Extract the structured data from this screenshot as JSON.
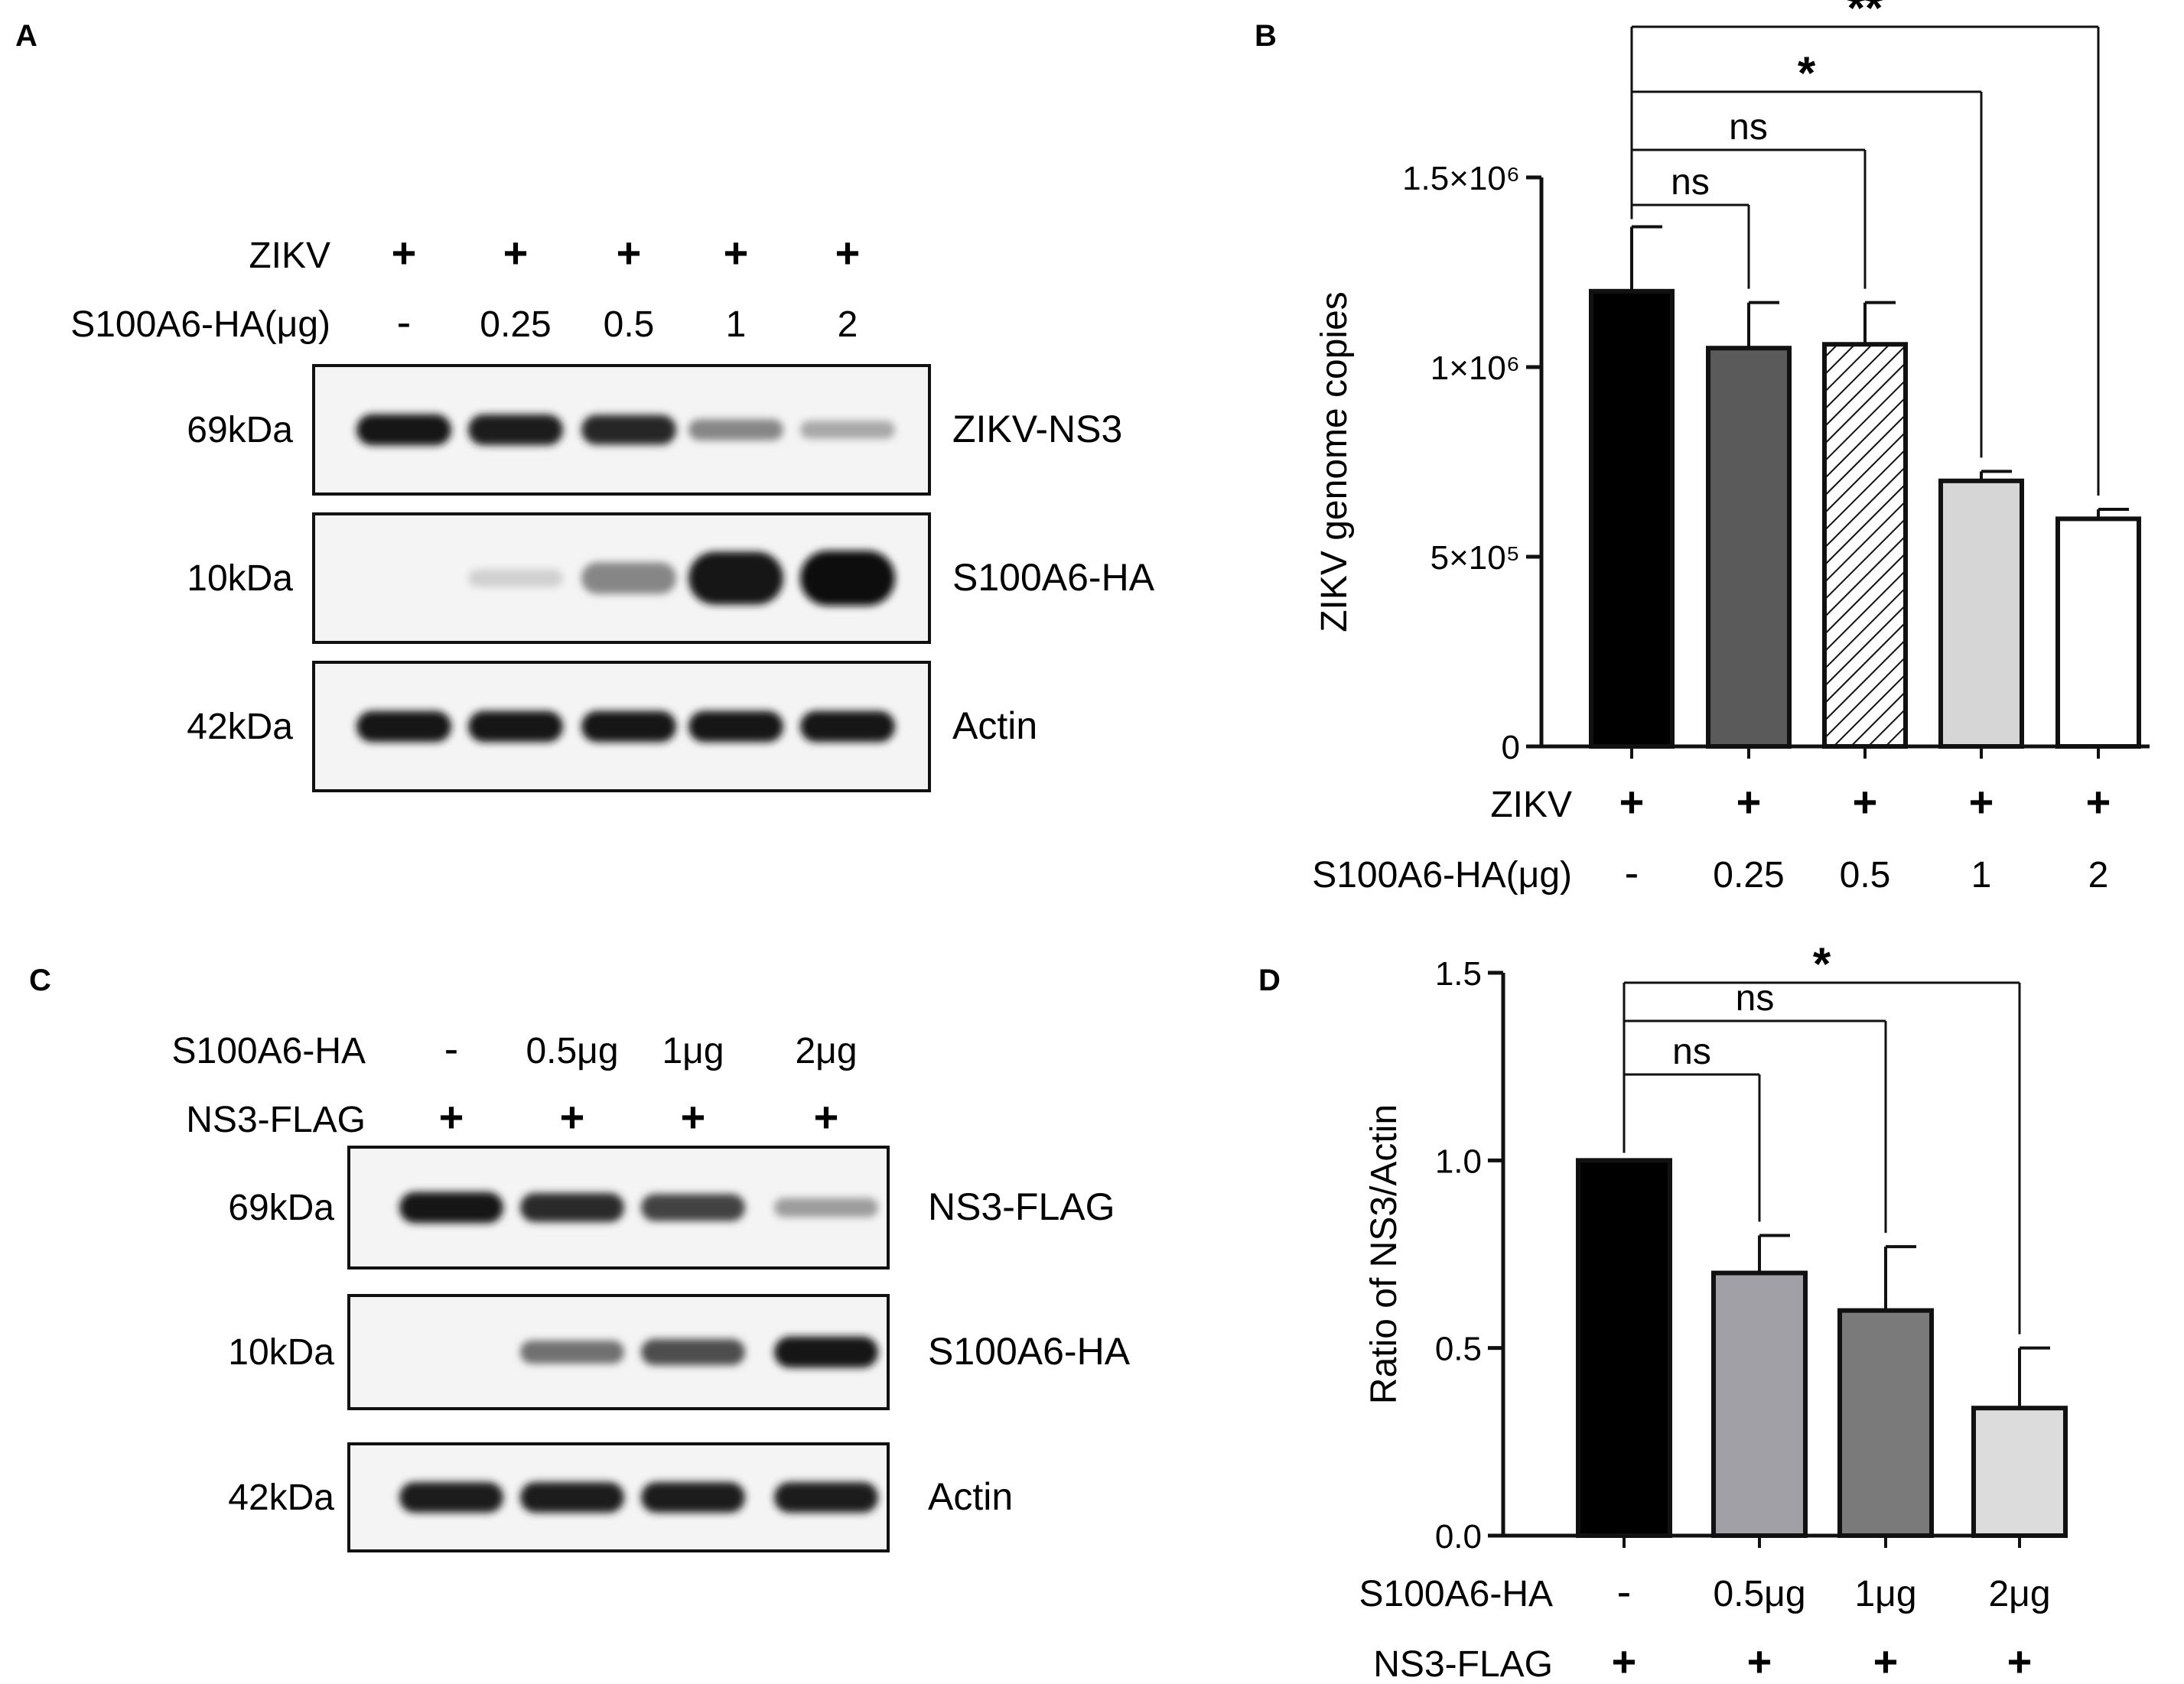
{
  "panels": [
    {
      "letter": "A",
      "rows": [
        {
          "label": "ZIKV",
          "values": [
            "+",
            "+",
            "+",
            "+",
            "+"
          ]
        },
        {
          "label": "S100A6-HA(μg)",
          "values": [
            "-",
            "0.25",
            "0.5",
            "1",
            "2"
          ]
        }
      ],
      "blots": [
        {
          "marker": "69kDa",
          "name": "ZIKV-NS3",
          "intensity": [
            0.95,
            0.93,
            0.88,
            0.45,
            0.3
          ]
        },
        {
          "marker": "10kDa",
          "name": "S100A6-HA",
          "intensity": [
            0.0,
            0.12,
            0.45,
            0.95,
            1.0
          ]
        },
        {
          "marker": "42kDa",
          "name": "Actin",
          "intensity": [
            0.95,
            0.95,
            0.95,
            0.95,
            0.95
          ]
        }
      ]
    },
    {
      "letter": "C",
      "rows": [
        {
          "label": "S100A6-HA",
          "values": [
            "-",
            "0.5μg",
            "1μg",
            "2μg"
          ]
        },
        {
          "label": "NS3-FLAG",
          "values": [
            "+",
            "+",
            "+",
            "+"
          ]
        }
      ],
      "blots": [
        {
          "marker": "69kDa",
          "name": "NS3-FLAG",
          "intensity": [
            0.95,
            0.85,
            0.75,
            0.35
          ]
        },
        {
          "marker": "10kDa",
          "name": "S100A6-HA",
          "intensity": [
            0.0,
            0.55,
            0.7,
            0.95
          ]
        },
        {
          "marker": "42kDa",
          "name": "Actin",
          "intensity": [
            0.92,
            0.92,
            0.92,
            0.92
          ]
        }
      ]
    }
  ],
  "chart_data": [
    {
      "letter": "B",
      "type": "bar",
      "ylabel": "ZIKV genome copies",
      "ylim": [
        0,
        1500000
      ],
      "ytick_labels": [
        "0",
        "5×10⁵",
        "1×10⁶",
        "1.5×10⁶"
      ],
      "ytick_values": [
        0,
        500000,
        1000000,
        1500000
      ],
      "values": [
        1200000,
        1050000,
        1060000,
        700000,
        600000
      ],
      "errors": [
        170000,
        120000,
        110000,
        25000,
        25000
      ],
      "fills": [
        "#000000",
        "#5a5a5a",
        "hatch",
        "#d6d6d6",
        "#ffffff"
      ],
      "rows": [
        {
          "label": "ZIKV",
          "values": [
            "+",
            "+",
            "+",
            "+",
            "+"
          ]
        },
        {
          "label": "S100A6-HA(μg)",
          "values": [
            "-",
            "0.25",
            "0.5",
            "1",
            "2"
          ]
        }
      ],
      "comparisons": [
        {
          "to": 1,
          "label": "ns"
        },
        {
          "to": 2,
          "label": "ns"
        },
        {
          "to": 3,
          "label": "*"
        },
        {
          "to": 4,
          "label": "**"
        }
      ]
    },
    {
      "letter": "D",
      "type": "bar",
      "ylabel": "Ratio of NS3/Actin",
      "ylim": [
        0,
        1.5
      ],
      "ytick_labels": [
        "0.0",
        "0.5",
        "1.0",
        "1.5"
      ],
      "ytick_values": [
        0,
        0.5,
        1.0,
        1.5
      ],
      "values": [
        1.0,
        0.7,
        0.6,
        0.34
      ],
      "errors": [
        0,
        0.1,
        0.17,
        0.16
      ],
      "fills": [
        "#000000",
        "#a0a0a6",
        "#7a7a7a",
        "#dcdcdc"
      ],
      "rows": [
        {
          "label": "S100A6-HA",
          "values": [
            "-",
            "0.5μg",
            "1μg",
            "2μg"
          ]
        },
        {
          "label": "NS3-FLAG",
          "values": [
            "+",
            "+",
            "+",
            "+"
          ]
        }
      ],
      "comparisons": [
        {
          "to": 1,
          "label": "ns"
        },
        {
          "to": 2,
          "label": "ns"
        },
        {
          "to": 3,
          "label": "*"
        }
      ]
    }
  ]
}
